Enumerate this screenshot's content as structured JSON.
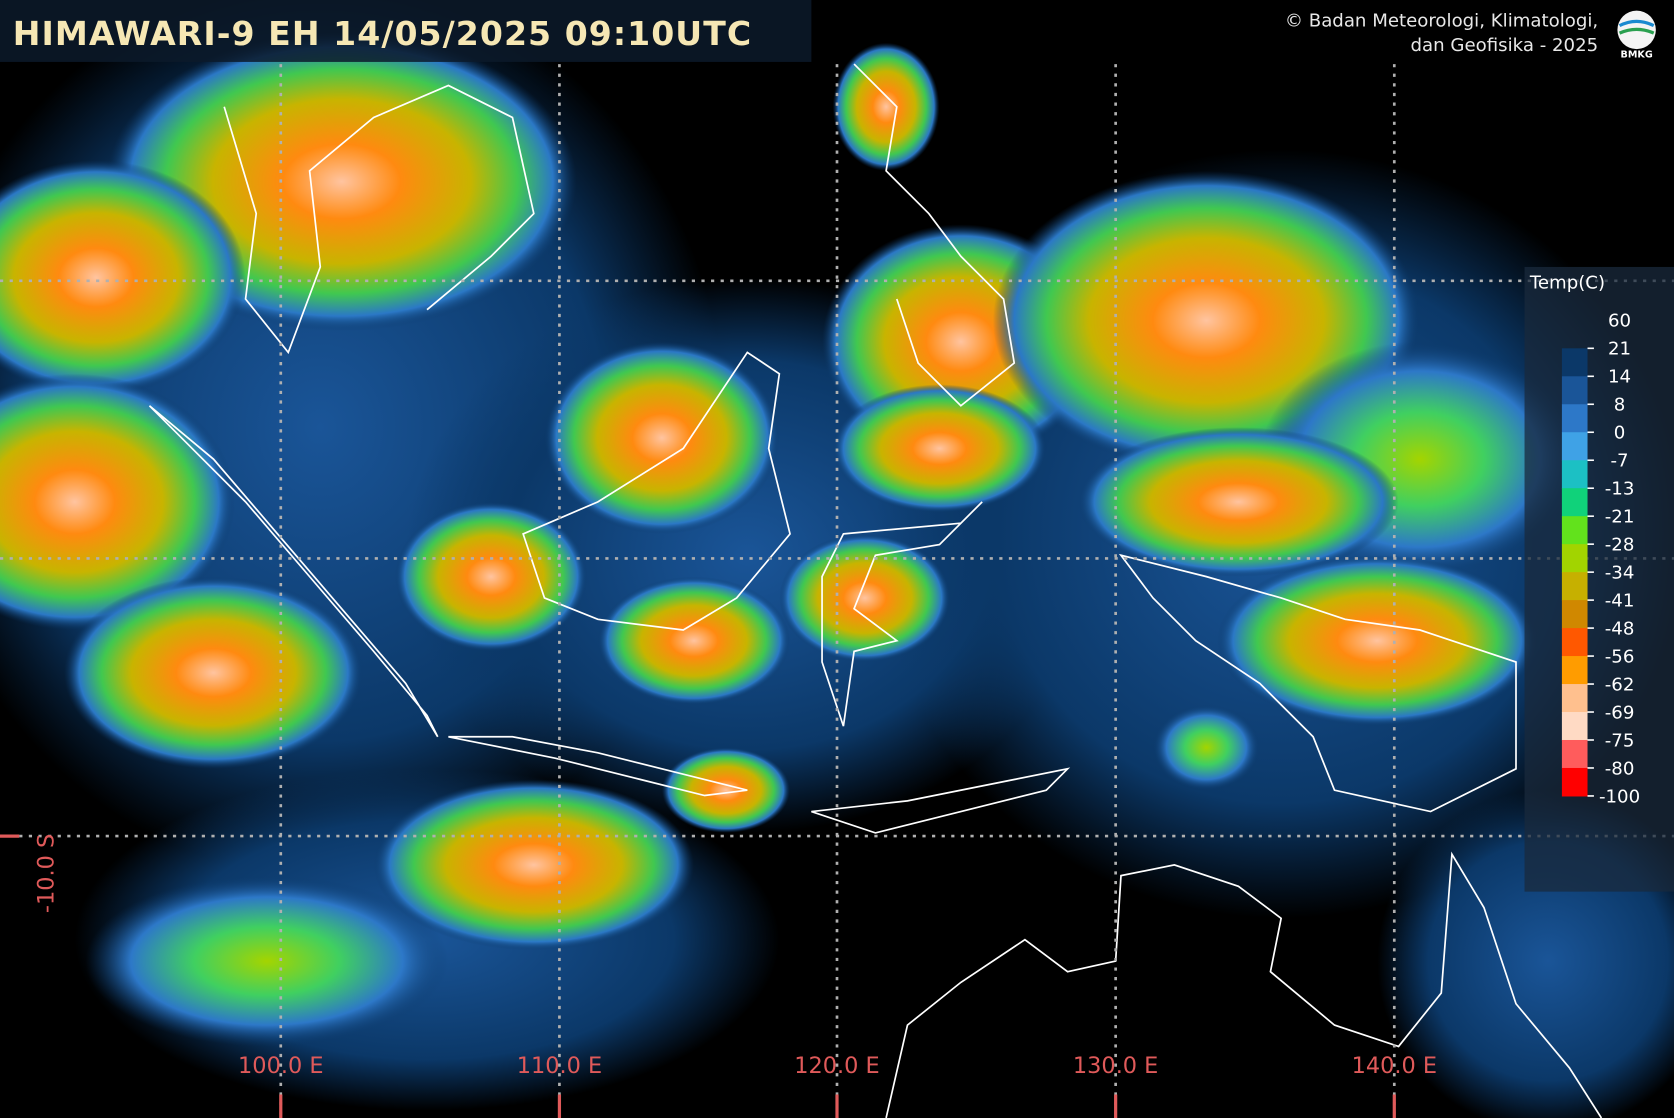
{
  "header": {
    "title": "HIMAWARI-9 EH 14/05/2025 09:10UTC",
    "credit": [
      "© Badan Meteorologi, Klimatologi,",
      "dan Geofisika -  2025"
    ],
    "logo": "BMKG"
  },
  "legend": {
    "title": "Temp(C)",
    "labels": [
      "60",
      "21",
      "14",
      "8",
      "0",
      "-7",
      "-13",
      "-21",
      "-28",
      "-34",
      "-41",
      "-48",
      "-56",
      "-62",
      "-69",
      "-75",
      "-80",
      "-100"
    ],
    "colors": [
      "#0b3868",
      "#1a5598",
      "#2d78c8",
      "#3fa2e6",
      "#1cc0c4",
      "#10d27a",
      "#62e21c",
      "#a2d400",
      "#c6b000",
      "#d08800",
      "#ff5800",
      "#ff9c00",
      "#ffc08e",
      "#ffdac4",
      "#ff5c5c",
      "#ff0000"
    ]
  },
  "axes": {
    "lon_labels": [
      "100.0 E",
      "110.0 E",
      "120.0 E",
      "130.0 E",
      "140.0 E"
    ],
    "lat_labels": [
      "-10.0 S"
    ]
  }
}
